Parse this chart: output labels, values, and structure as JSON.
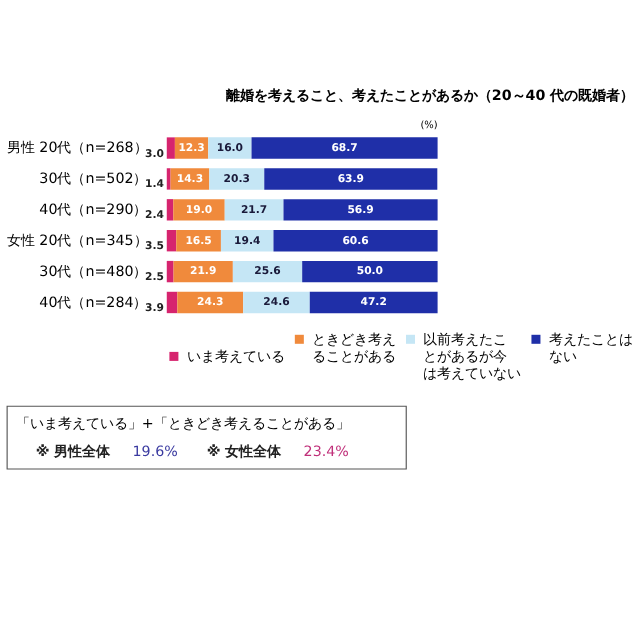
{
  "chart_data": {
    "type": "bar",
    "orientation": "horizontal",
    "stacked": true,
    "title": "離婚を考えること、考えたことがあるか（20～40 代の既婚者）",
    "categories": [
      "男性 20代（n=268）",
      "30代（n=502）",
      "40代（n=290）",
      "女性 20代（n=345）",
      "30代（n=480）",
      "40代（n=284）"
    ],
    "series": [
      {
        "name": "いま考えている",
        "color": "#d6246e",
        "values": [
          3.0,
          1.4,
          2.4,
          3.5,
          2.5,
          3.9
        ],
        "value_labels": [
          "3.0",
          "1.4",
          "2.4",
          "3.5",
          "2.5",
          "3.9"
        ]
      },
      {
        "name": "ときどき考えることがある",
        "color": "#f08a3c",
        "values": [
          12.3,
          14.3,
          19.0,
          16.5,
          21.9,
          24.3
        ],
        "value_labels": [
          "12.3",
          "14.3",
          "19.0",
          "16.5",
          "21.9",
          "24.3"
        ]
      },
      {
        "name": "以前考えたことがあるが今は考えていない",
        "color": "#c5e6f5",
        "values": [
          16.0,
          20.3,
          21.7,
          19.4,
          25.6,
          24.6
        ],
        "value_labels": [
          "16.0",
          "20.3",
          "21.7",
          "19.4",
          "25.6",
          "24.6"
        ]
      },
      {
        "name": "考えたことはない",
        "color": "#1f2fa8",
        "values": [
          68.7,
          63.9,
          56.9,
          60.6,
          50.0,
          47.2
        ],
        "value_labels": [
          "68.7",
          "63.9",
          "56.9",
          "60.6",
          "50.0",
          "47.2"
        ]
      }
    ],
    "xlim": [
      0,
      100
    ],
    "tick_labels": "y",
    "legend": "bottom",
    "annotations": [
      "(%)",
      "「いま考えている」+「ときどき考えることがある」",
      "※ 男性全体",
      "19.6%",
      "※ 女性全体",
      "23.4%"
    ]
  }
}
